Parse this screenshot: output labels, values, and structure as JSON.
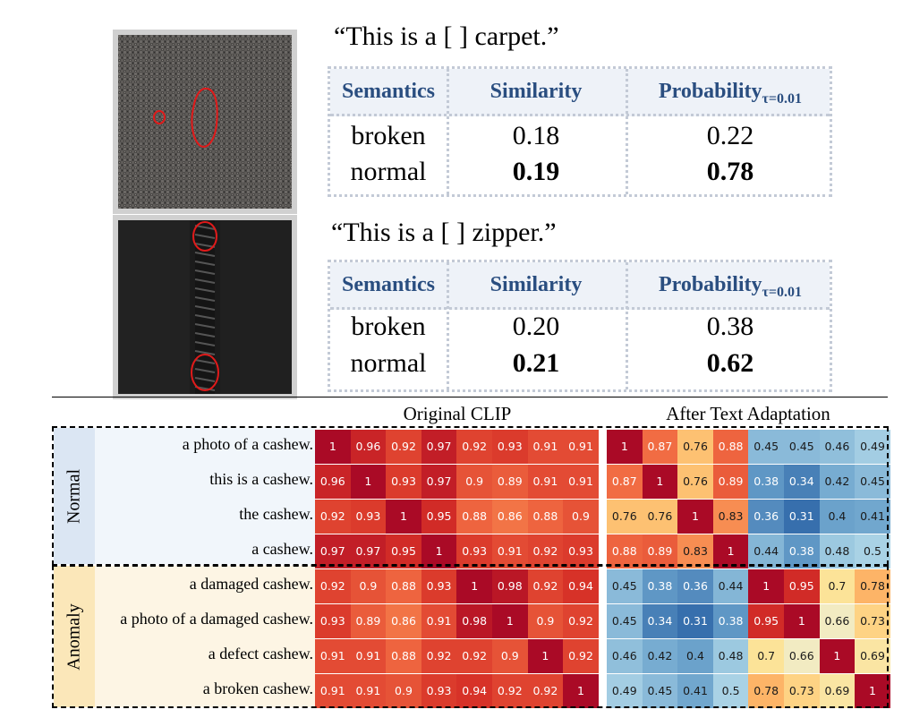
{
  "top_panels": [
    {
      "image_icon": "carpet-defect-photo",
      "prompt": "“This is a [      ] carpet.”",
      "headers": [
        "Semantics",
        "Similarity",
        "Probability"
      ],
      "prob_subscript": "τ=0.01",
      "rows": [
        {
          "semantic": "broken",
          "similarity": "0.18",
          "probability": "0.22",
          "bold": false
        },
        {
          "semantic": "normal",
          "similarity": "0.19",
          "probability": "0.78",
          "bold": true
        }
      ]
    },
    {
      "image_icon": "zipper-defect-photo",
      "prompt": "“This is a [      ] zipper.”",
      "headers": [
        "Semantics",
        "Similarity",
        "Probability"
      ],
      "prob_subscript": "τ=0.01",
      "rows": [
        {
          "semantic": "broken",
          "similarity": "0.20",
          "probability": "0.38",
          "bold": false
        },
        {
          "semantic": "normal",
          "similarity": "0.21",
          "probability": "0.62",
          "bold": true
        }
      ]
    }
  ],
  "heatmaps": {
    "left_title": "Original CLIP",
    "right_title": "After Text Adaptation",
    "group_labels": [
      "Normal",
      "Anomaly"
    ],
    "row_labels": [
      "a photo of a cashew.",
      "this is a cashew.",
      "the cashew.",
      "a cashew.",
      "a damaged cashew.",
      "a photo of a damaged cashew.",
      "a defect cashew.",
      "a broken cashew."
    ]
  },
  "chart_data": [
    {
      "type": "heatmap",
      "title": "Original CLIP",
      "rows": [
        "a photo of a cashew.",
        "this is a cashew.",
        "the cashew.",
        "a cashew.",
        "a damaged cashew.",
        "a photo of a damaged cashew.",
        "a defect cashew.",
        "a broken cashew."
      ],
      "values": [
        [
          "1",
          "0.96",
          "0.92",
          "0.97",
          "0.92",
          "0.93",
          "0.91",
          "0.91"
        ],
        [
          "0.96",
          "1",
          "0.93",
          "0.97",
          "0.9",
          "0.89",
          "0.91",
          "0.91"
        ],
        [
          "0.92",
          "0.93",
          "1",
          "0.95",
          "0.88",
          "0.86",
          "0.88",
          "0.9"
        ],
        [
          "0.97",
          "0.97",
          "0.95",
          "1",
          "0.93",
          "0.91",
          "0.92",
          "0.93"
        ],
        [
          "0.92",
          "0.9",
          "0.88",
          "0.93",
          "1",
          "0.98",
          "0.92",
          "0.94"
        ],
        [
          "0.93",
          "0.89",
          "0.86",
          "0.91",
          "0.98",
          "1",
          "0.9",
          "0.92"
        ],
        [
          "0.91",
          "0.91",
          "0.88",
          "0.92",
          "0.92",
          "0.9",
          "1",
          "0.92"
        ],
        [
          "0.91",
          "0.91",
          "0.9",
          "0.93",
          "0.94",
          "0.92",
          "0.92",
          "1"
        ]
      ]
    },
    {
      "type": "heatmap",
      "title": "After Text Adaptation",
      "rows": [
        "a photo of a cashew.",
        "this is a cashew.",
        "the cashew.",
        "a cashew.",
        "a damaged cashew.",
        "a photo of a damaged cashew.",
        "a defect cashew.",
        "a broken cashew."
      ],
      "values": [
        [
          "1",
          "0.87",
          "0.76",
          "0.88",
          "0.45",
          "0.45",
          "0.46",
          "0.49"
        ],
        [
          "0.87",
          "1",
          "0.76",
          "0.89",
          "0.38",
          "0.34",
          "0.42",
          "0.45"
        ],
        [
          "0.76",
          "0.76",
          "1",
          "0.83",
          "0.36",
          "0.31",
          "0.4",
          "0.41"
        ],
        [
          "0.88",
          "0.89",
          "0.83",
          "1",
          "0.44",
          "0.38",
          "0.48",
          "0.5"
        ],
        [
          "0.45",
          "0.38",
          "0.36",
          "0.44",
          "1",
          "0.95",
          "0.7",
          "0.78"
        ],
        [
          "0.45",
          "0.34",
          "0.31",
          "0.38",
          "0.95",
          "1",
          "0.66",
          "0.73"
        ],
        [
          "0.46",
          "0.42",
          "0.4",
          "0.48",
          "0.7",
          "0.66",
          "1",
          "0.69"
        ],
        [
          "0.49",
          "0.45",
          "0.41",
          "0.5",
          "0.78",
          "0.73",
          "0.69",
          "1"
        ]
      ]
    }
  ]
}
